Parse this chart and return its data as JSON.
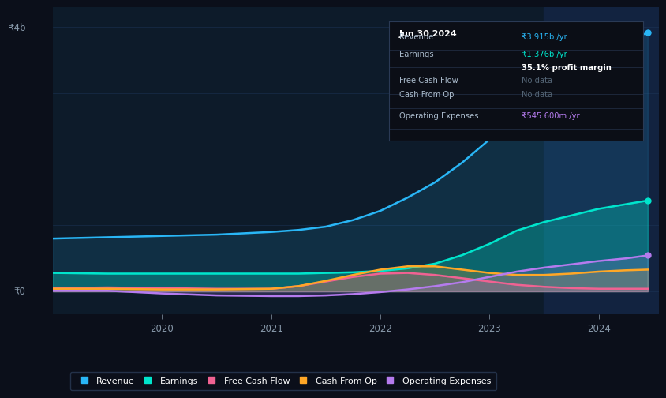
{
  "bg_color": "#0b0f1a",
  "plot_bg_color": "#0d1b2a",
  "highlight_bg_color": "#122340",
  "grid_color": "#1e3a5f",
  "years_x": [
    2019.0,
    2019.5,
    2020.0,
    2020.5,
    2021.0,
    2021.25,
    2021.5,
    2021.75,
    2022.0,
    2022.25,
    2022.5,
    2022.75,
    2023.0,
    2023.25,
    2023.5,
    2023.75,
    2024.0,
    2024.25,
    2024.45
  ],
  "revenue": [
    0.8,
    0.82,
    0.84,
    0.86,
    0.9,
    0.93,
    0.98,
    1.08,
    1.22,
    1.42,
    1.65,
    1.95,
    2.3,
    2.65,
    3.0,
    3.35,
    3.6,
    3.8,
    3.915
  ],
  "earnings": [
    0.28,
    0.27,
    0.27,
    0.27,
    0.27,
    0.27,
    0.28,
    0.29,
    0.31,
    0.35,
    0.42,
    0.55,
    0.72,
    0.92,
    1.05,
    1.15,
    1.25,
    1.32,
    1.376
  ],
  "free_cash_flow": [
    0.05,
    0.06,
    0.05,
    0.04,
    0.04,
    0.08,
    0.15,
    0.22,
    0.27,
    0.28,
    0.25,
    0.2,
    0.15,
    0.1,
    0.07,
    0.05,
    0.04,
    0.04,
    0.04
  ],
  "cash_from_op": [
    0.04,
    0.04,
    0.03,
    0.03,
    0.04,
    0.08,
    0.16,
    0.25,
    0.33,
    0.38,
    0.38,
    0.33,
    0.28,
    0.25,
    0.25,
    0.27,
    0.3,
    0.32,
    0.33
  ],
  "op_expenses": [
    0.01,
    0.01,
    -0.03,
    -0.06,
    -0.07,
    -0.07,
    -0.06,
    -0.04,
    -0.01,
    0.03,
    0.08,
    0.14,
    0.22,
    0.3,
    0.36,
    0.41,
    0.46,
    0.5,
    0.5456
  ],
  "revenue_color": "#29b6f6",
  "earnings_color": "#00e5cc",
  "free_cash_flow_color": "#f06292",
  "cash_from_op_color": "#ffa726",
  "op_expenses_color": "#b57bee",
  "highlight_x_start": 2023.5,
  "highlight_x_end": 2024.55,
  "xlim_min": 2019.0,
  "xlim_max": 2024.55,
  "ylim_min": -0.35,
  "ylim_max": 4.3,
  "y_tick_labels": [
    "₹0",
    "₹4b"
  ],
  "y_tick_values": [
    0,
    4
  ],
  "x_ticks": [
    2020,
    2021,
    2022,
    2023,
    2024
  ],
  "grid_lines": [
    -0.0,
    1.0,
    2.0,
    3.0,
    4.0
  ],
  "tooltip": {
    "date": "Jun 30 2024",
    "revenue_label": "Revenue",
    "revenue_val": "₹3.915b",
    "earnings_label": "Earnings",
    "earnings_val": "₹1.376b",
    "margin_text": "35.1% profit margin",
    "fcf_label": "Free Cash Flow",
    "fcf_val": "No data",
    "cfo_label": "Cash From Op",
    "cfo_val": "No data",
    "opex_label": "Operating Expenses",
    "opex_val": "₹545.600m /yr"
  },
  "legend_items": [
    {
      "label": "Revenue",
      "color": "#29b6f6"
    },
    {
      "label": "Earnings",
      "color": "#00e5cc"
    },
    {
      "label": "Free Cash Flow",
      "color": "#f06292"
    },
    {
      "label": "Cash From Op",
      "color": "#ffa726"
    },
    {
      "label": "Operating Expenses",
      "color": "#b57bee"
    }
  ]
}
